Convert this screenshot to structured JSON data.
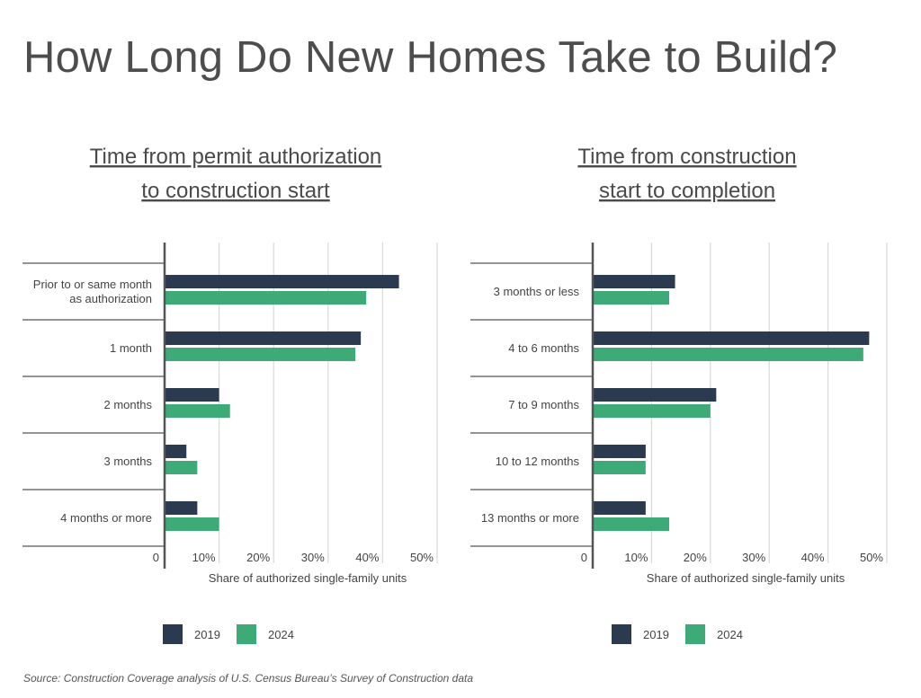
{
  "title": "How Long Do New Homes Take to Build?",
  "source": "Source: Construction Coverage analysis of U.S. Census Bureau’s Survey of Construction data",
  "colors": {
    "series_2019": "#2b3a4e",
    "series_2024": "#3daa78",
    "grid": "#d9d9d9",
    "axis": "#555555",
    "separator": "#555555"
  },
  "chart_data": [
    {
      "type": "bar",
      "orientation": "horizontal",
      "title_lines": [
        "Time from permit authorization ",
        "to construction start"
      ],
      "categories": [
        [
          "Prior to or same month",
          "as authorization"
        ],
        [
          "1 month"
        ],
        [
          "2 months"
        ],
        [
          "3 months"
        ],
        [
          "4 months or more"
        ]
      ],
      "series": [
        {
          "name": "2019",
          "values": [
            43,
            36,
            10,
            4,
            6
          ]
        },
        {
          "name": "2024",
          "values": [
            37,
            35,
            12,
            6,
            10
          ]
        }
      ],
      "xlim": [
        0,
        50
      ],
      "ticks": [
        0,
        10,
        20,
        30,
        40,
        50
      ],
      "tick_labels": [
        "0",
        "10%",
        "20%",
        "30%",
        "40%",
        "50%"
      ],
      "xlabel": "Share of authorized single-family units",
      "grid": true,
      "legend": [
        "2019",
        "2024"
      ],
      "legend_position": "bottom"
    },
    {
      "type": "bar",
      "orientation": "horizontal",
      "title_lines": [
        "Time from construction ",
        "start to completion"
      ],
      "categories": [
        [
          "3 months or less"
        ],
        [
          "4 to 6 months"
        ],
        [
          "7 to 9 months"
        ],
        [
          "10 to 12 months"
        ],
        [
          "13 months or more"
        ]
      ],
      "series": [
        {
          "name": "2019",
          "values": [
            14,
            47,
            21,
            9,
            9
          ]
        },
        {
          "name": "2024",
          "values": [
            13,
            46,
            20,
            9,
            13
          ]
        }
      ],
      "xlim": [
        0,
        50
      ],
      "ticks": [
        0,
        10,
        20,
        30,
        40,
        50
      ],
      "tick_labels": [
        "0",
        "10%",
        "20%",
        "30%",
        "40%",
        "50%"
      ],
      "xlabel": "Share of authorized single-family units",
      "grid": true,
      "legend": [
        "2019",
        "2024"
      ],
      "legend_position": "bottom"
    }
  ]
}
